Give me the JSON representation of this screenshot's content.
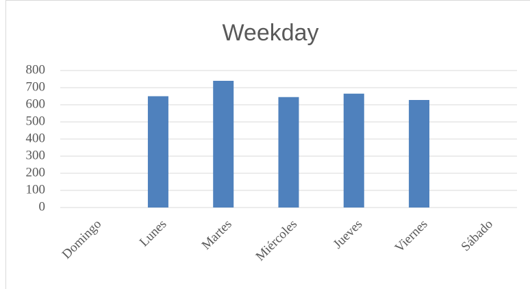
{
  "chart_data": {
    "type": "bar",
    "title": "Weekday",
    "categories": [
      "Domingo",
      "Lunes",
      "Martes",
      "Miércoles",
      "Jueves",
      "Viernes",
      "Sábado"
    ],
    "values": [
      0,
      650,
      740,
      645,
      665,
      628,
      0
    ],
    "color": "#4f81bd",
    "ylim": [
      0,
      800
    ],
    "yticks": [
      0,
      100,
      200,
      300,
      400,
      500,
      600,
      700,
      800
    ],
    "grid": true
  }
}
